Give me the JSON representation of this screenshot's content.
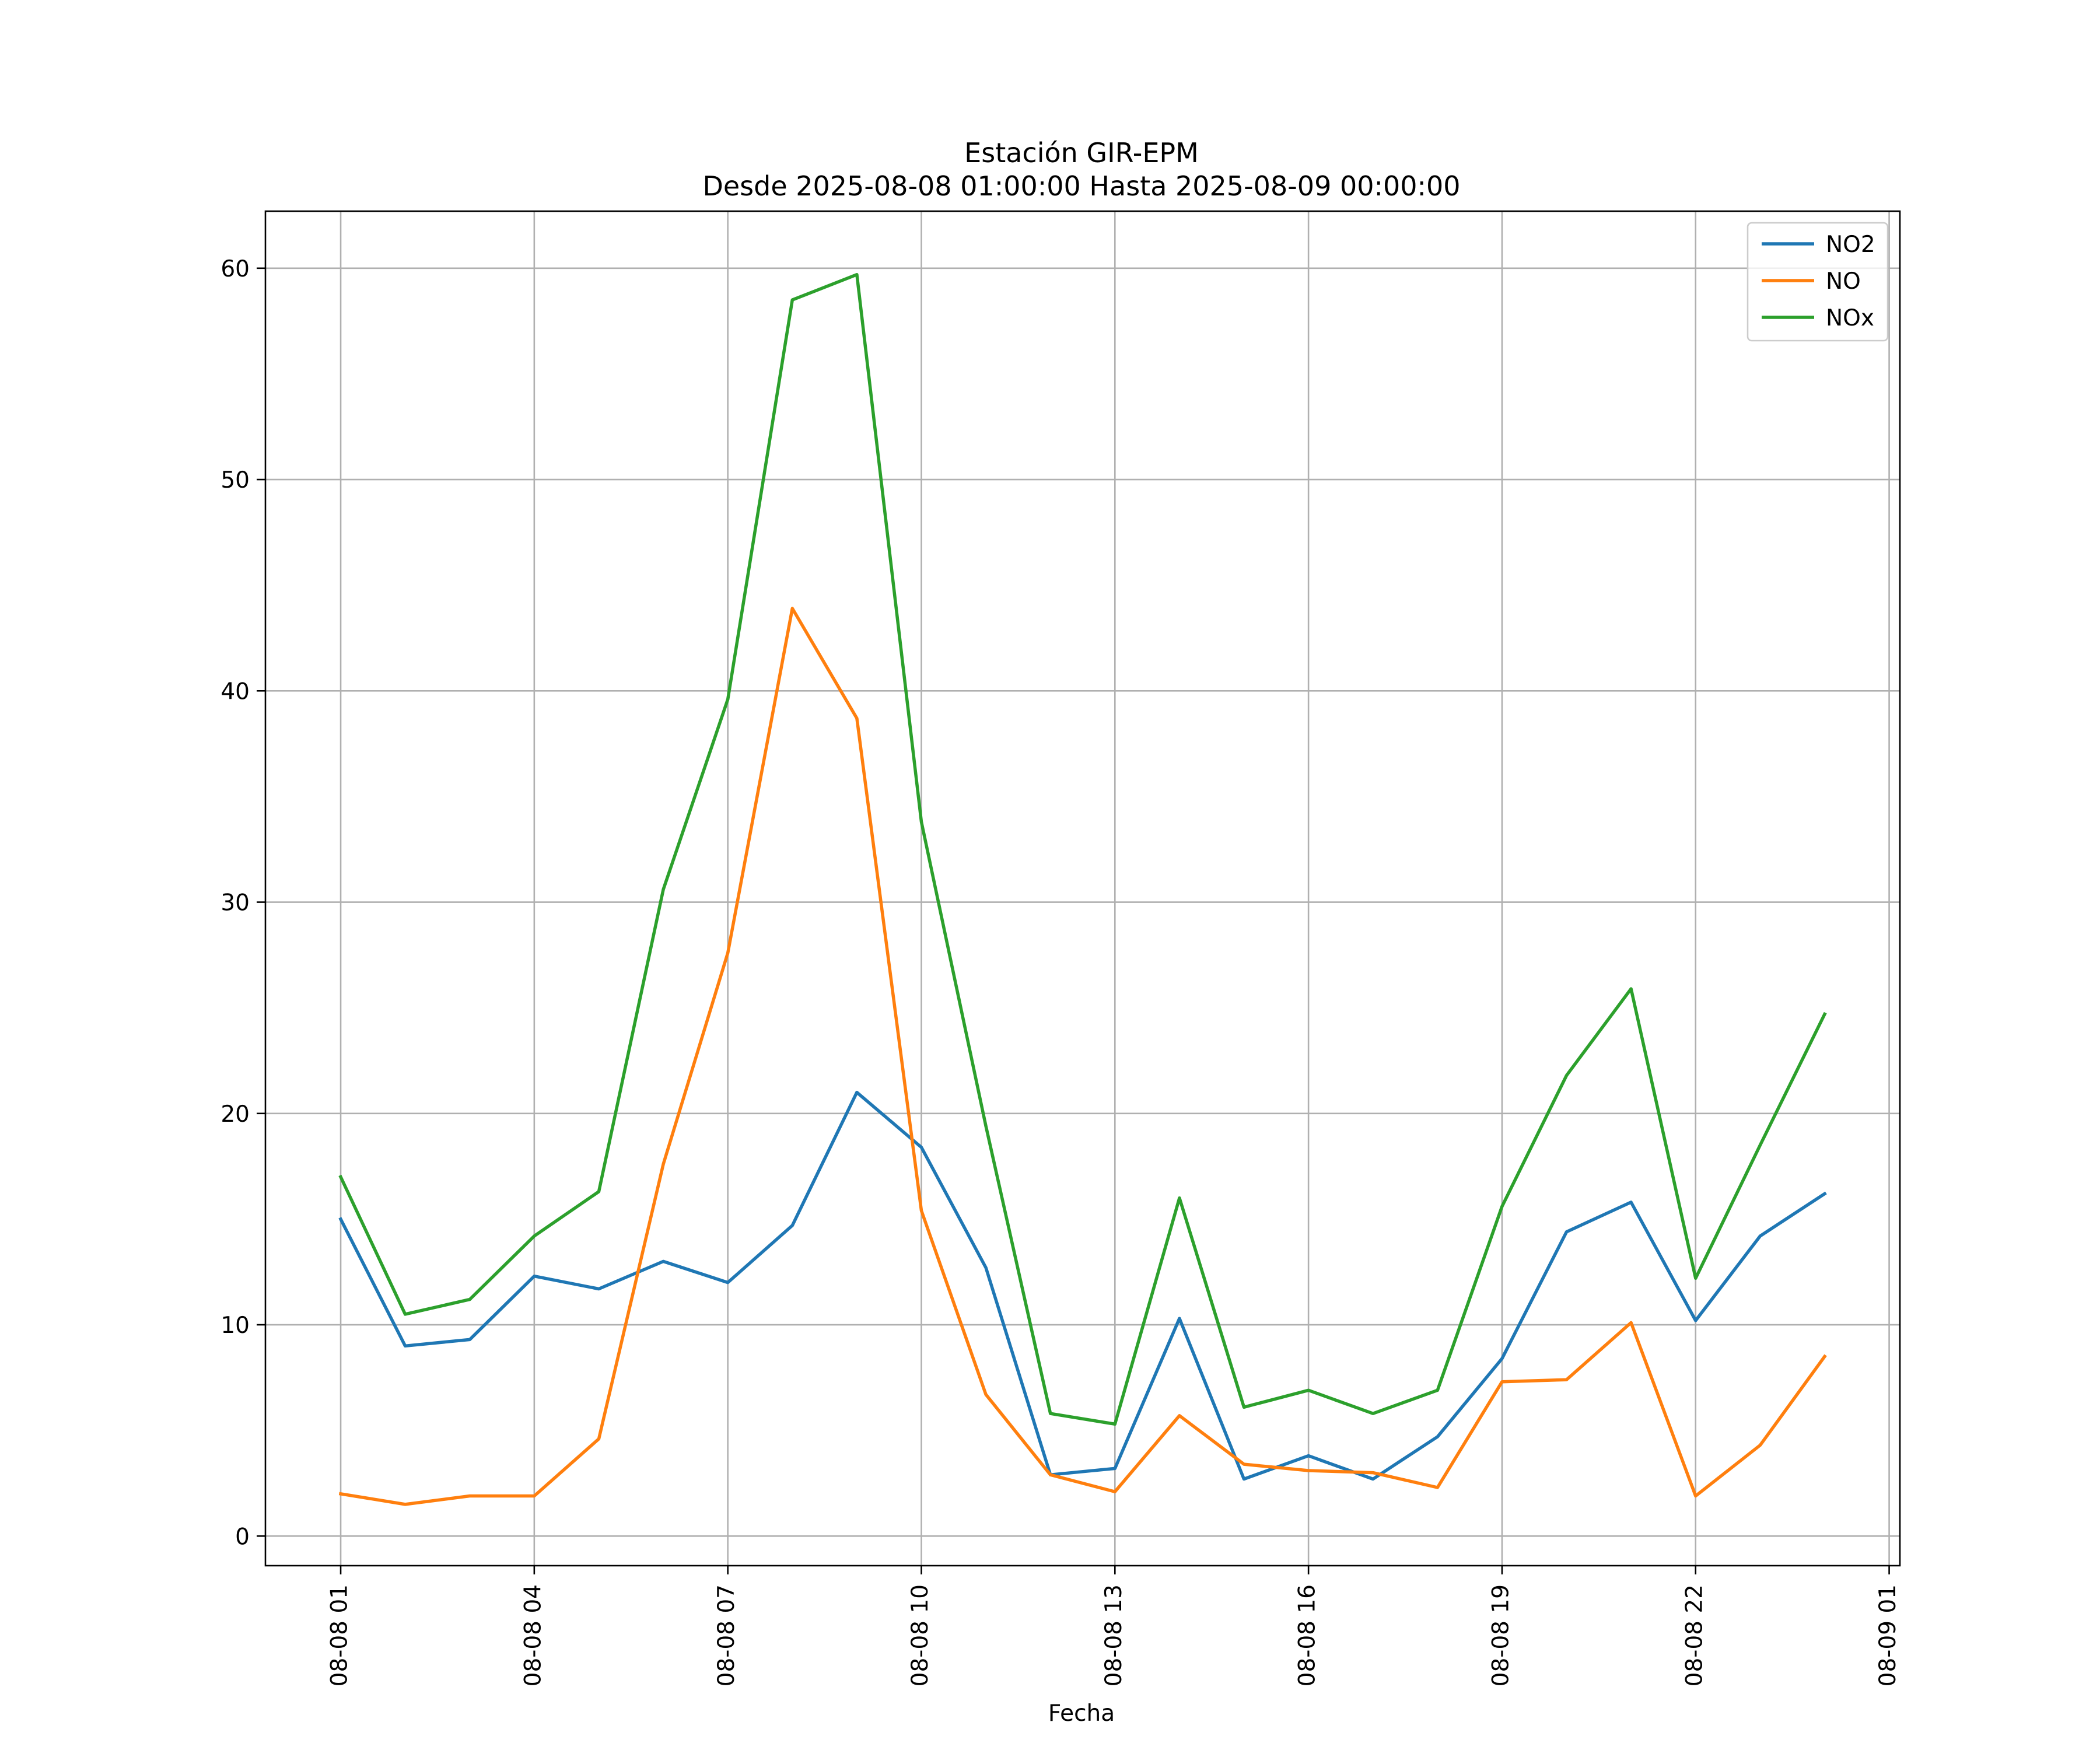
{
  "chart_data": {
    "type": "line",
    "title": "Estación GIR-EPM",
    "subtitle": "Desde 2025-08-08 01:00:00 Hasta 2025-08-09 00:00:00",
    "xlabel": "Fecha",
    "ylabel": "",
    "x": [
      "2025-08-08 01:00",
      "2025-08-08 02:00",
      "2025-08-08 03:00",
      "2025-08-08 04:00",
      "2025-08-08 05:00",
      "2025-08-08 06:00",
      "2025-08-08 07:00",
      "2025-08-08 08:00",
      "2025-08-08 09:00",
      "2025-08-08 10:00",
      "2025-08-08 11:00",
      "2025-08-08 12:00",
      "2025-08-08 13:00",
      "2025-08-08 14:00",
      "2025-08-08 15:00",
      "2025-08-08 16:00",
      "2025-08-08 17:00",
      "2025-08-08 18:00",
      "2025-08-08 19:00",
      "2025-08-08 20:00",
      "2025-08-08 21:00",
      "2025-08-08 22:00",
      "2025-08-08 23:00",
      "2025-08-09 00:00"
    ],
    "x_ticks": [
      "08-08 01",
      "08-08 04",
      "08-08 07",
      "08-08 10",
      "08-08 13",
      "08-08 16",
      "08-08 19",
      "08-08 22",
      "08-09 01"
    ],
    "x_tick_dates": [
      "2025-08-08 01:00",
      "2025-08-08 04:00",
      "2025-08-08 07:00",
      "2025-08-08 10:00",
      "2025-08-08 13:00",
      "2025-08-08 16:00",
      "2025-08-08 19:00",
      "2025-08-08 22:00",
      "2025-08-09 01:00"
    ],
    "xlim": [
      "2025-08-07 23:50",
      "2025-08-09 01:10"
    ],
    "y_ticks": [
      "0",
      "10",
      "20",
      "30",
      "40",
      "50",
      "60"
    ],
    "ylim": [
      -1.4,
      62.7
    ],
    "grid": true,
    "legend_position": "top-right",
    "series": [
      {
        "name": "NO2",
        "color": "#1f77b4",
        "values": [
          15.0,
          9.0,
          9.3,
          12.3,
          11.7,
          13.0,
          12.0,
          14.7,
          21.0,
          18.4,
          12.7,
          2.9,
          3.2,
          10.3,
          2.7,
          3.8,
          2.7,
          4.7,
          8.4,
          14.4,
          15.8,
          10.2,
          14.2,
          16.2
        ]
      },
      {
        "name": "NO",
        "color": "#ff7f0e",
        "values": [
          2.0,
          1.5,
          1.9,
          1.9,
          4.6,
          17.6,
          27.6,
          43.9,
          38.7,
          15.4,
          6.7,
          2.9,
          2.1,
          5.7,
          3.4,
          3.1,
          3.0,
          2.3,
          7.3,
          7.4,
          10.1,
          1.9,
          4.3,
          8.5
        ]
      },
      {
        "name": "NOx",
        "color": "#2ca02c",
        "values": [
          17.0,
          10.5,
          11.2,
          14.2,
          16.3,
          30.6,
          39.6,
          58.5,
          59.7,
          33.8,
          19.4,
          5.8,
          5.3,
          16.0,
          6.1,
          6.9,
          5.8,
          6.9,
          15.6,
          21.8,
          25.9,
          12.2,
          18.5,
          24.7
        ]
      }
    ]
  }
}
